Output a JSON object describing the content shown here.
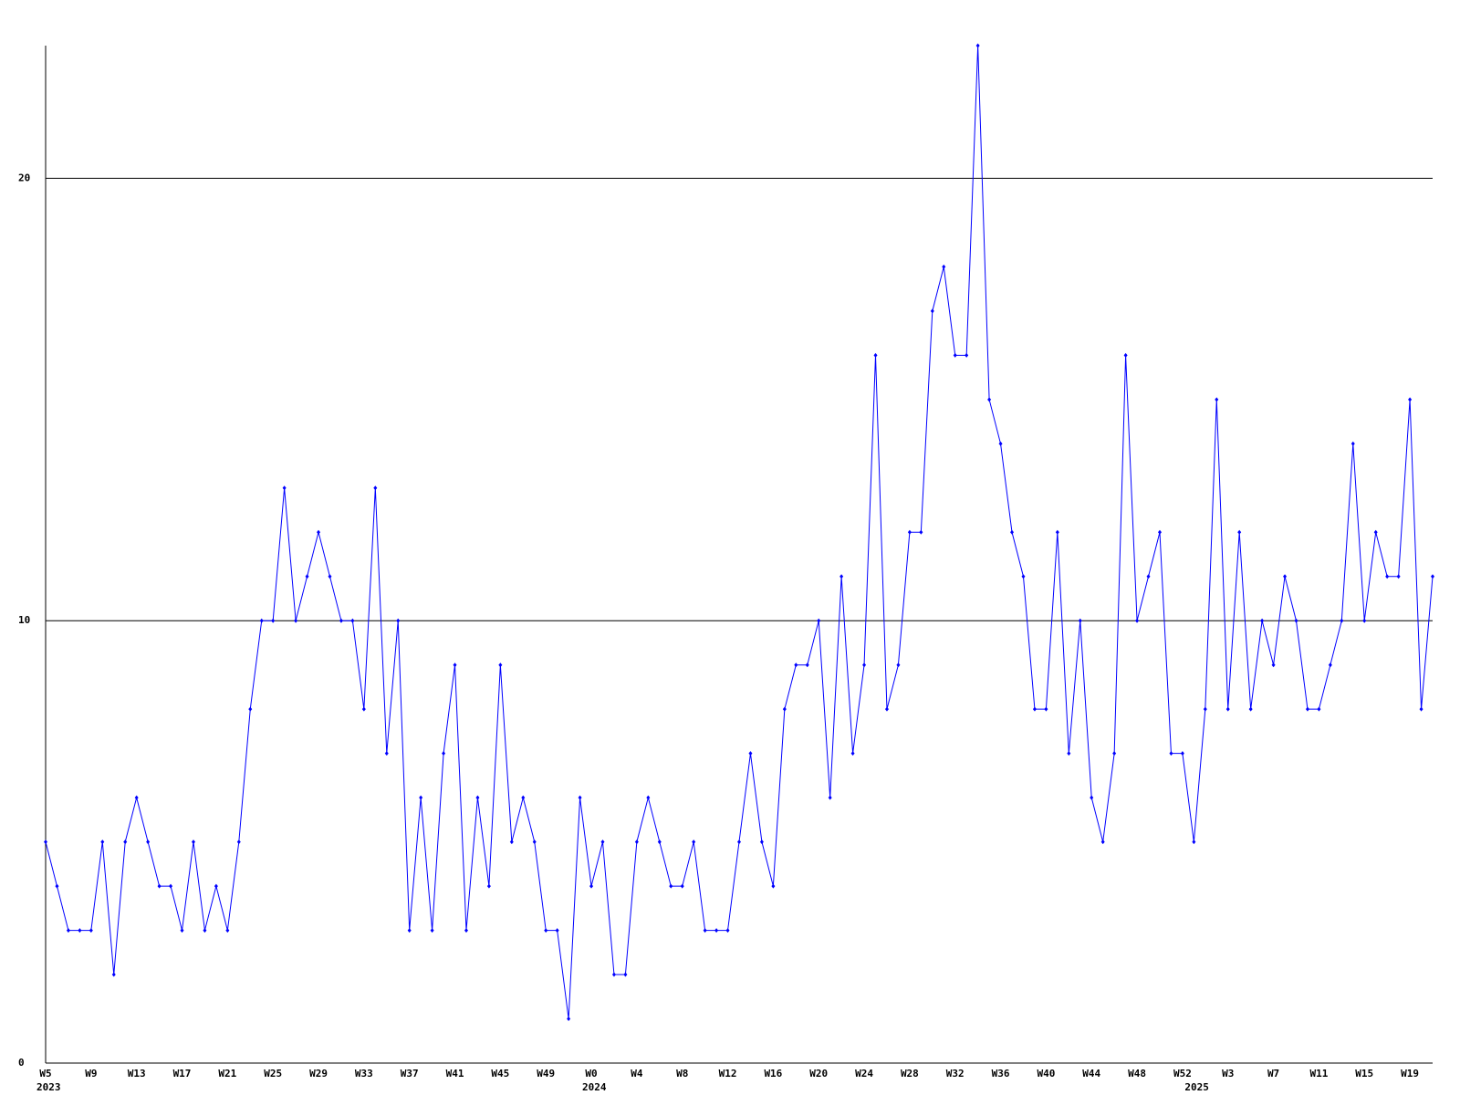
{
  "chart_data": {
    "type": "line",
    "color": "#0000ff",
    "grid": true,
    "grid_color": "#000000",
    "ylim": [
      0,
      23
    ],
    "yticks": [
      0,
      10,
      20
    ],
    "categories": [
      "W5",
      null,
      null,
      null,
      "W9",
      null,
      null,
      null,
      "W13",
      null,
      null,
      null,
      "W17",
      null,
      null,
      null,
      "W21",
      null,
      null,
      null,
      "W25",
      null,
      null,
      null,
      "W29",
      null,
      null,
      null,
      "W33",
      null,
      null,
      null,
      "W37",
      null,
      null,
      null,
      "W41",
      null,
      null,
      null,
      "W45",
      null,
      null,
      null,
      "W49",
      null,
      null,
      null,
      "W0",
      null,
      null,
      null,
      "W4",
      null,
      null,
      null,
      "W8",
      null,
      null,
      null,
      "W12",
      null,
      null,
      null,
      "W16",
      null,
      null,
      null,
      "W20",
      null,
      null,
      null,
      "W24",
      null,
      null,
      null,
      "W28",
      null,
      null,
      null,
      "W32",
      null,
      null,
      null,
      "W36",
      null,
      null,
      null,
      "W40",
      null,
      null,
      null,
      "W44",
      null,
      null,
      null,
      "W48",
      null,
      null,
      null,
      "W52",
      null,
      null,
      null,
      "W3",
      null,
      null,
      null,
      "W7",
      null,
      null,
      null,
      "W11",
      null,
      null,
      null,
      "W15",
      null,
      null,
      null,
      "W19",
      null,
      null
    ],
    "category_years": [
      "2023",
      null,
      null,
      null,
      null,
      null,
      null,
      null,
      null,
      null,
      null,
      null,
      null,
      null,
      null,
      null,
      null,
      null,
      null,
      null,
      null,
      null,
      null,
      null,
      null,
      null,
      null,
      null,
      null,
      null,
      null,
      null,
      null,
      null,
      null,
      null,
      null,
      null,
      null,
      null,
      null,
      null,
      null,
      null,
      null,
      null,
      null,
      null,
      "2024",
      null,
      null,
      null,
      null,
      null,
      null,
      null,
      null,
      null,
      null,
      null,
      null,
      null,
      null,
      null,
      null,
      null,
      null,
      null,
      null,
      null,
      null,
      null,
      null,
      null,
      null,
      null,
      null,
      null,
      null,
      null,
      null,
      null,
      null,
      null,
      null,
      null,
      null,
      null,
      null,
      null,
      null,
      null,
      null,
      null,
      null,
      null,
      null,
      null,
      null,
      null,
      null,
      "2025",
      null,
      null,
      null,
      null,
      null,
      null,
      null,
      null,
      null,
      null,
      null,
      null,
      null,
      null,
      null,
      null,
      null,
      null,
      null,
      null,
      null
    ],
    "values": [
      5,
      4,
      3,
      3,
      3,
      5,
      2,
      5,
      6,
      5,
      4,
      4,
      3,
      5,
      3,
      4,
      3,
      5,
      8,
      10,
      10,
      13,
      10,
      11,
      12,
      11,
      10,
      10,
      8,
      13,
      7,
      10,
      3,
      6,
      3,
      7,
      9,
      3,
      6,
      4,
      9,
      5,
      6,
      5,
      3,
      3,
      1,
      6,
      4,
      5,
      2,
      2,
      5,
      6,
      5,
      4,
      4,
      5,
      3,
      3,
      3,
      5,
      7,
      5,
      4,
      8,
      9,
      9,
      10,
      6,
      11,
      7,
      9,
      16,
      8,
      9,
      12,
      12,
      17,
      18,
      16,
      16,
      23,
      15,
      14,
      12,
      11,
      8,
      8,
      12,
      7,
      10,
      6,
      5,
      7,
      16,
      10,
      11,
      12,
      7,
      7,
      5,
      8,
      15,
      8,
      12,
      8,
      10,
      9,
      11,
      10,
      8,
      8,
      9,
      10,
      14,
      10,
      12,
      11,
      11,
      15,
      8,
      11
    ]
  }
}
